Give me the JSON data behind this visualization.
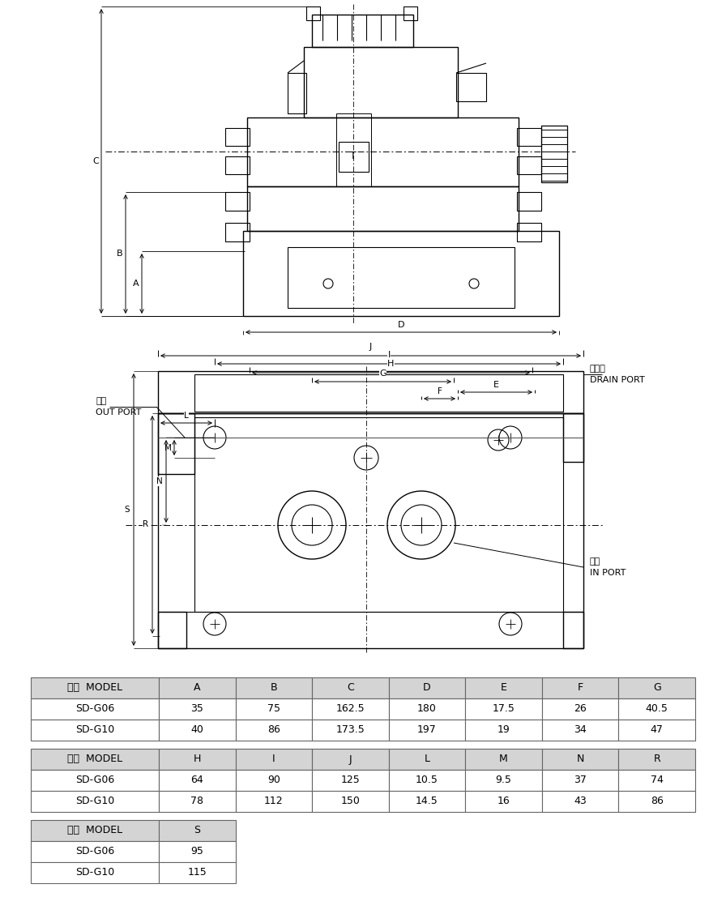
{
  "bg_color": "#ffffff",
  "line_color": "#000000",
  "table1_headers": [
    "型式  MODEL",
    "A",
    "B",
    "C",
    "D",
    "E",
    "F",
    "G"
  ],
  "table1_rows": [
    [
      "SD-G06",
      "35",
      "75",
      "162.5",
      "180",
      "17.5",
      "26",
      "40.5"
    ],
    [
      "SD-G10",
      "40",
      "86",
      "173.5",
      "197",
      "19",
      "34",
      "47"
    ]
  ],
  "table2_headers": [
    "型式  MODEL",
    "H",
    "I",
    "J",
    "L",
    "M",
    "N",
    "R"
  ],
  "table2_rows": [
    [
      "SD-G06",
      "64",
      "90",
      "125",
      "10.5",
      "9.5",
      "37",
      "74"
    ],
    [
      "SD-G10",
      "78",
      "112",
      "150",
      "14.5",
      "16",
      "43",
      "86"
    ]
  ],
  "table3_headers": [
    "型式  MODEL",
    "S"
  ],
  "table3_rows": [
    [
      "SD-G06",
      "95"
    ],
    [
      "SD-G10",
      "115"
    ]
  ],
  "header_bg": "#d4d4d4",
  "row_bg": "#ffffff",
  "grid_color": "#888888",
  "text_color": "#000000"
}
